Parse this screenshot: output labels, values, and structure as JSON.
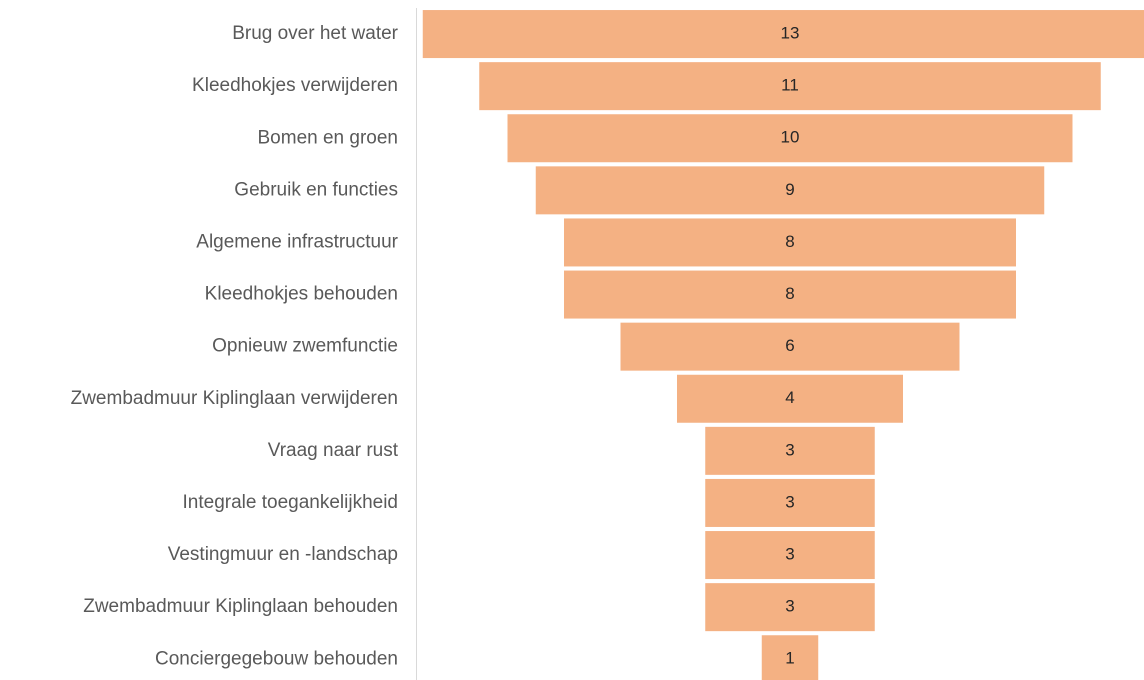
{
  "chart_data": {
    "type": "funnel",
    "categories": [
      "Brug over het water",
      "Kleedhokjes verwijderen",
      "Bomen en groen",
      "Gebruik en functies",
      "Algemene infrastructuur",
      "Kleedhokjes behouden",
      "Opnieuw zwemfunctie",
      "Zwembadmuur Kiplinglaan verwijderen",
      "Vraag naar rust",
      "Integrale toegankelijkheid",
      "Vestingmuur en -landschap",
      "Zwembadmuur Kiplinglaan behouden",
      "Conciergegebouw behouden"
    ],
    "values": [
      13,
      11,
      10,
      9,
      8,
      8,
      6,
      4,
      3,
      3,
      3,
      3,
      1
    ],
    "color": "#f4b183"
  }
}
